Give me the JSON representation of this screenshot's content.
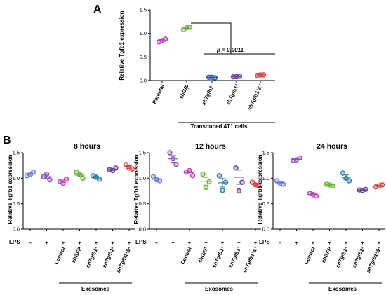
{
  "figure": {
    "panel_a_letter": "A",
    "panel_b_letter": "B",
    "panel_a_group_label": "Transduced 4T1 cells",
    "panel_a_pvalue": "p = 0.0011",
    "lps_label": "LPS",
    "exosomes_label": "Exosomes",
    "colors": {
      "magenta": "#c040c0",
      "green": "#6cb33f",
      "blue": "#2e5da8",
      "purple": "#6a3e98",
      "red": "#d94343",
      "periwinkle": "#6a7fd6",
      "teal": "#2d7da0",
      "violet": "#8b52b9"
    }
  },
  "chart_data": [
    {
      "type": "scatter",
      "panel": "A",
      "ylabel": "Relative Tgfb1 expression",
      "ylim": [
        0,
        1.5
      ],
      "yticks": [
        "0.0",
        "0.5",
        "1.0",
        "1.5"
      ],
      "categories": [
        "Parental",
        "shGfp",
        "shTgfb1¹",
        "shTgfb1²",
        "shTgfb1¹&²"
      ],
      "points": [
        [
          0.82,
          0.88,
          0.85
        ],
        [
          1.08,
          1.13,
          1.12
        ],
        [
          0.07,
          0.06,
          0.07
        ],
        [
          0.08,
          0.09,
          0.08
        ],
        [
          0.11,
          0.12,
          0.12
        ]
      ],
      "means": [
        0.85,
        1.11,
        0.07,
        0.08,
        0.12
      ],
      "colors": [
        "#c040c0",
        "#6cb33f",
        "#2e5da8",
        "#6a3e98",
        "#d94343"
      ]
    },
    {
      "type": "scatter",
      "panel": "B",
      "title": "8 hours",
      "ylabel": "Relative Tgfb1 expression",
      "ylim": [
        0,
        1.5
      ],
      "yticks": [
        "0.0",
        "0.5",
        "1.0",
        "1.5"
      ],
      "lps": [
        "–",
        "+",
        "+",
        "+",
        "+",
        "+",
        "+"
      ],
      "categories": [
        "",
        "",
        "Control",
        "shGFP",
        "shTgfb1¹",
        "shTgfb1²",
        "shTgfb1¹&²"
      ],
      "points": [
        [
          1.05,
          1.12,
          1.07
        ],
        [
          1.03,
          0.97,
          1.08
        ],
        [
          0.93,
          0.98,
          0.9
        ],
        [
          1.12,
          1.0,
          1.07
        ],
        [
          1.05,
          0.98,
          1.02
        ],
        [
          1.17,
          1.2,
          1.15
        ],
        [
          1.27,
          1.18,
          1.2
        ]
      ],
      "means": [
        1.08,
        1.03,
        0.94,
        1.06,
        1.02,
        1.17,
        1.22
      ],
      "colors": [
        "#6a7fd6",
        "#8b52b9",
        "#c040c0",
        "#6cb33f",
        "#2d7da0",
        "#6a3e98",
        "#d94343"
      ]
    },
    {
      "type": "scatter",
      "panel": "B",
      "title": "12 hours",
      "ylabel": "Relative Tgfb1 expression",
      "ylim": [
        0,
        1.5
      ],
      "yticks": [
        "0.0",
        "0.5",
        "1.0",
        "1.5"
      ],
      "lps": [
        "–",
        "+",
        "+",
        "+",
        "+",
        "+",
        "+"
      ],
      "categories": [
        "",
        "",
        "Control",
        "shGFP",
        "shTgfb1¹",
        "shTgfb1²",
        "shTgfb1¹&²"
      ],
      "points": [
        [
          1.03,
          0.95,
          0.97
        ],
        [
          1.5,
          1.27,
          1.38
        ],
        [
          1.12,
          1.05,
          1.15
        ],
        [
          1.08,
          0.93,
          0.82
        ],
        [
          1.05,
          0.92,
          0.76
        ],
        [
          1.2,
          0.92,
          0.75
        ],
        [
          0.92,
          0.85,
          0.87
        ]
      ],
      "means": [
        0.98,
        1.38,
        1.11,
        0.94,
        0.91,
        1.02,
        0.88
      ],
      "colors": [
        "#6a7fd6",
        "#8b52b9",
        "#c040c0",
        "#6cb33f",
        "#2d7da0",
        "#6a3e98",
        "#d94343"
      ]
    },
    {
      "type": "scatter",
      "panel": "B",
      "title": "24 hours",
      "ylabel": "Relative Tgfb1 expression",
      "ylim": [
        0,
        1.5
      ],
      "yticks": [
        "0.0",
        "0.5",
        "1.0",
        "1.5"
      ],
      "lps": [
        "–",
        "+",
        "+",
        "+",
        "+",
        "+",
        "+"
      ],
      "categories": [
        "",
        "",
        "Control",
        "shGFP",
        "shTgfb1¹",
        "shTgfb1²",
        "shTgfb1¹&²"
      ],
      "points": [
        [
          0.95,
          0.88,
          0.9
        ],
        [
          1.35,
          1.4,
          1.36
        ],
        [
          0.7,
          0.65,
          0.68
        ],
        [
          0.88,
          0.85,
          0.87
        ],
        [
          1.1,
          0.95,
          1.0
        ],
        [
          0.77,
          0.78,
          0.76
        ],
        [
          0.83,
          0.87,
          0.85
        ]
      ],
      "means": [
        0.91,
        1.37,
        0.68,
        0.87,
        1.02,
        0.77,
        0.85
      ],
      "colors": [
        "#6a7fd6",
        "#8b52b9",
        "#c040c0",
        "#6cb33f",
        "#2d7da0",
        "#6a3e98",
        "#d94343"
      ]
    }
  ]
}
